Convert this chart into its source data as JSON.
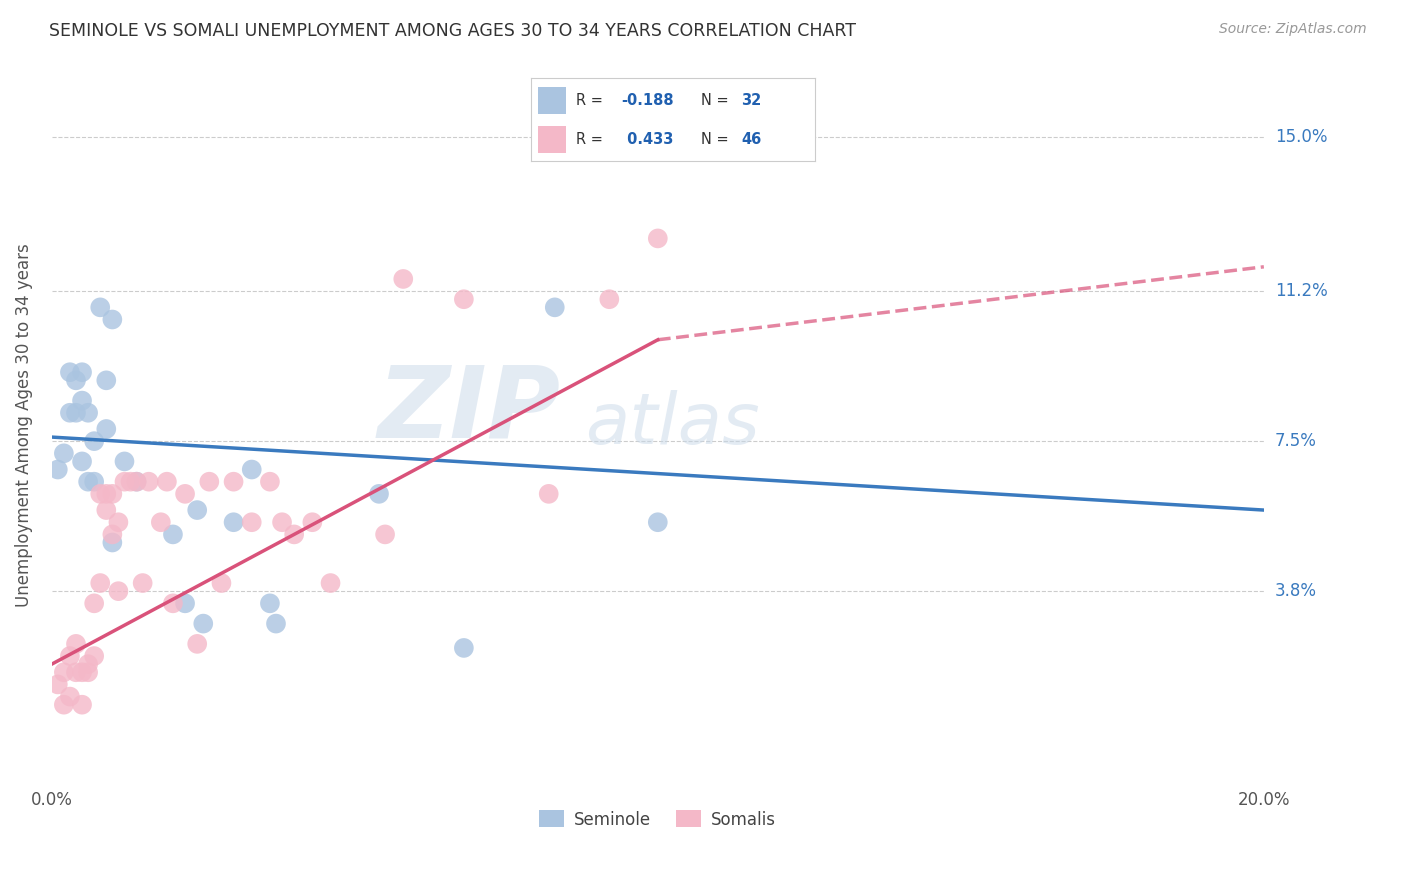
{
  "title": "SEMINOLE VS SOMALI UNEMPLOYMENT AMONG AGES 30 TO 34 YEARS CORRELATION CHART",
  "source": "Source: ZipAtlas.com",
  "ylabel": "Unemployment Among Ages 30 to 34 years",
  "xlim": [
    0.0,
    0.2
  ],
  "ylim": [
    -0.01,
    0.168
  ],
  "ytick_positions": [
    0.038,
    0.075,
    0.112,
    0.15
  ],
  "ytick_labels": [
    "3.8%",
    "7.5%",
    "11.2%",
    "15.0%"
  ],
  "watermark_line1": "ZIP",
  "watermark_line2": "atlas",
  "blue_color": "#aac4e0",
  "pink_color": "#f4b8c8",
  "blue_line_color": "#3a7abf",
  "pink_line_color": "#d9527a",
  "background_color": "#ffffff",
  "seminole_x": [
    0.001,
    0.002,
    0.003,
    0.003,
    0.004,
    0.004,
    0.005,
    0.005,
    0.005,
    0.006,
    0.006,
    0.007,
    0.007,
    0.008,
    0.009,
    0.009,
    0.01,
    0.01,
    0.012,
    0.014,
    0.02,
    0.022,
    0.024,
    0.025,
    0.03,
    0.033,
    0.036,
    0.037,
    0.054,
    0.068,
    0.083,
    0.1
  ],
  "seminole_y": [
    0.068,
    0.072,
    0.092,
    0.082,
    0.09,
    0.082,
    0.092,
    0.085,
    0.07,
    0.065,
    0.082,
    0.075,
    0.065,
    0.108,
    0.09,
    0.078,
    0.05,
    0.105,
    0.07,
    0.065,
    0.052,
    0.035,
    0.058,
    0.03,
    0.055,
    0.068,
    0.035,
    0.03,
    0.062,
    0.024,
    0.108,
    0.055
  ],
  "somali_x": [
    0.001,
    0.002,
    0.002,
    0.003,
    0.003,
    0.004,
    0.004,
    0.005,
    0.005,
    0.006,
    0.006,
    0.007,
    0.007,
    0.008,
    0.008,
    0.009,
    0.009,
    0.01,
    0.01,
    0.011,
    0.011,
    0.012,
    0.013,
    0.014,
    0.015,
    0.016,
    0.018,
    0.019,
    0.02,
    0.022,
    0.024,
    0.026,
    0.028,
    0.03,
    0.033,
    0.036,
    0.038,
    0.04,
    0.043,
    0.046,
    0.055,
    0.058,
    0.068,
    0.082,
    0.092,
    0.1
  ],
  "somali_y": [
    0.015,
    0.018,
    0.01,
    0.012,
    0.022,
    0.018,
    0.025,
    0.018,
    0.01,
    0.02,
    0.018,
    0.035,
    0.022,
    0.04,
    0.062,
    0.058,
    0.062,
    0.052,
    0.062,
    0.055,
    0.038,
    0.065,
    0.065,
    0.065,
    0.04,
    0.065,
    0.055,
    0.065,
    0.035,
    0.062,
    0.025,
    0.065,
    0.04,
    0.065,
    0.055,
    0.065,
    0.055,
    0.052,
    0.055,
    0.04,
    0.052,
    0.115,
    0.11,
    0.062,
    0.11,
    0.125
  ],
  "blue_line_x0": 0.0,
  "blue_line_y0": 0.076,
  "blue_line_x1": 0.2,
  "blue_line_y1": 0.058,
  "pink_line_x0": 0.0,
  "pink_line_y0": 0.02,
  "pink_line_x1": 0.1,
  "pink_line_x1_dash": 0.2,
  "pink_line_y1": 0.1,
  "pink_line_y1_dash": 0.118
}
